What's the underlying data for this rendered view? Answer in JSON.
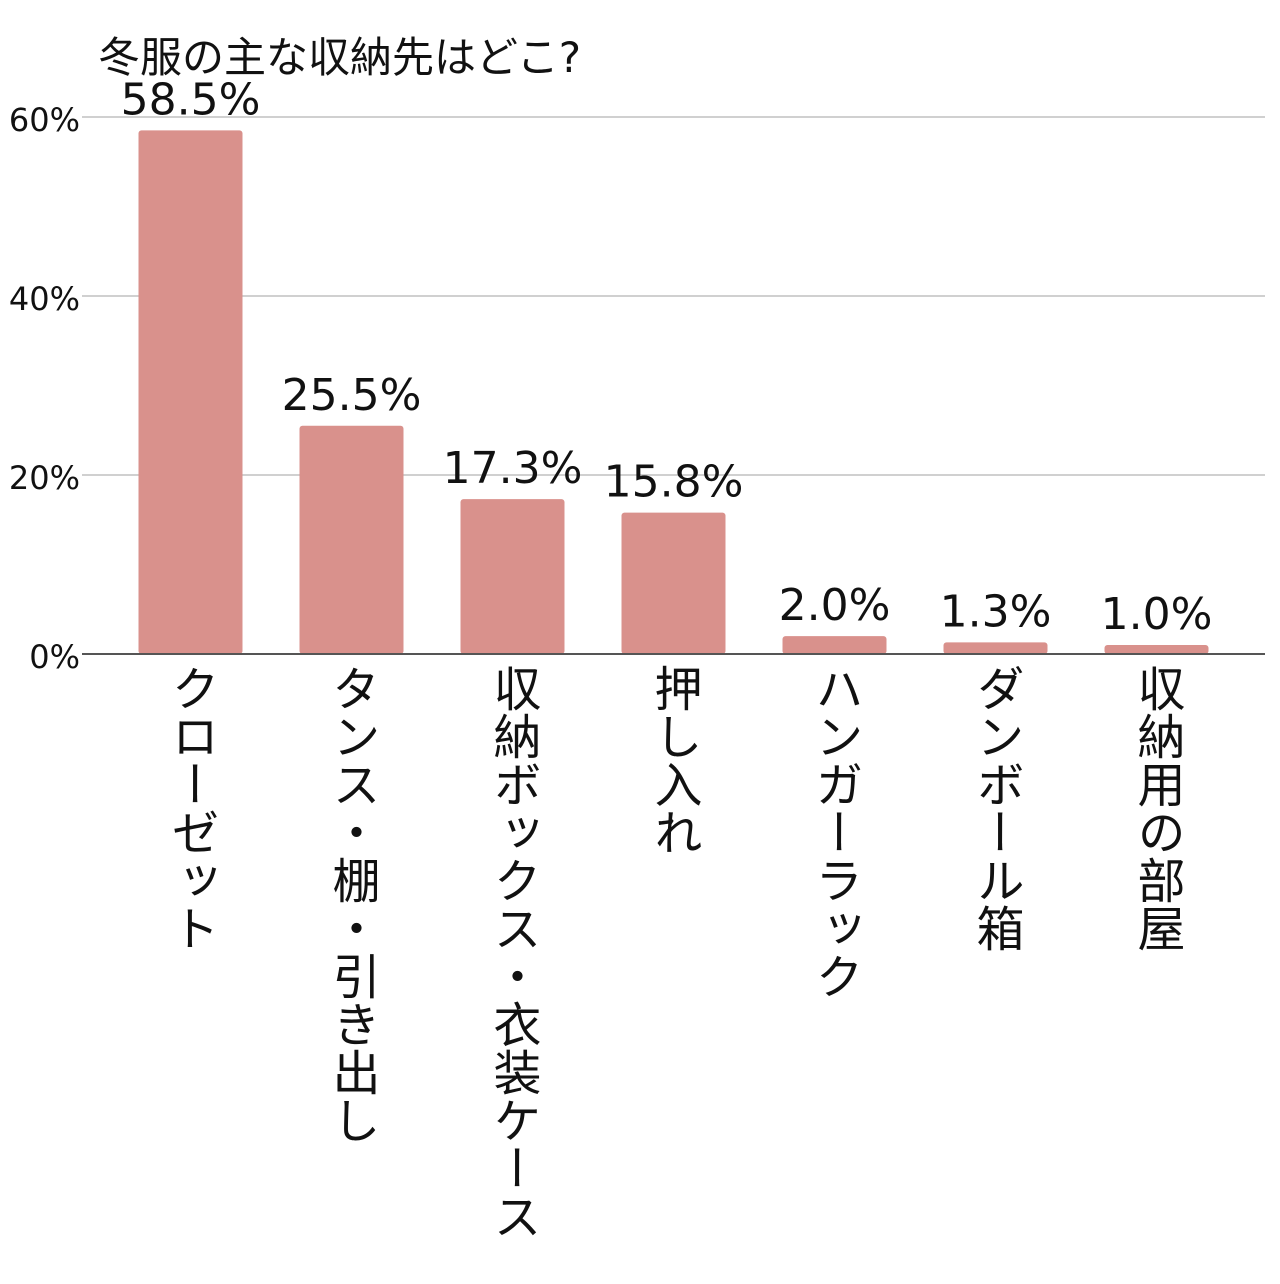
{
  "chart_data": {
    "type": "bar",
    "title": "冬服の主な収納先はどこ?",
    "categories": [
      "クローゼット",
      "タンス・棚・引き出し",
      "収納ボックス・衣装ケース",
      "押し入れ",
      "ハンガーラック",
      "ダンボール箱",
      "収納用の部屋"
    ],
    "values": [
      58.5,
      25.5,
      17.3,
      15.8,
      2.0,
      1.3,
      1.0
    ],
    "value_labels": [
      "58.5%",
      "25.5%",
      "17.3%",
      "15.8%",
      "2.0%",
      "1.3%",
      "1.0%"
    ],
    "yticks": [
      0,
      20,
      40,
      60
    ],
    "ytick_labels": [
      "0%",
      "20%",
      "40%",
      "60%"
    ],
    "ylim": [
      0,
      60
    ],
    "grid": true,
    "bar_color": "#d9918c",
    "grid_color": "#d0d0d0",
    "axis_color": "#555555"
  }
}
